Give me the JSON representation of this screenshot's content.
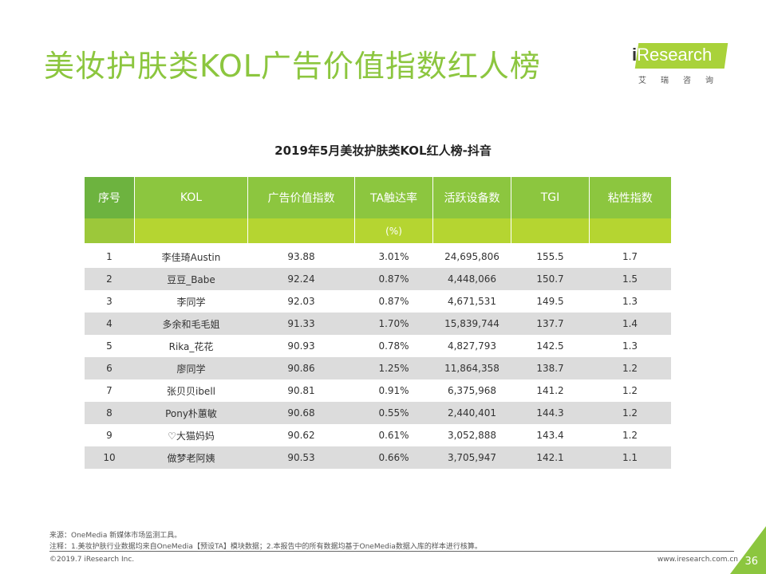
{
  "title": "美妆护肤类KOL广告价值指数红人榜",
  "logo": {
    "text_i": "i",
    "text": "Research",
    "cn": "艾瑞咨询"
  },
  "subtitle": "2019年5月美妆护肤类KOL红人榜-抖音",
  "columns": [
    "序号",
    "KOL",
    "广告价值指数",
    "TA触达率",
    "活跃设备数",
    "TGI",
    "粘性指数"
  ],
  "column_sub": [
    "",
    "",
    "",
    "(%)",
    "",
    "",
    ""
  ],
  "rows": [
    [
      "1",
      "李佳琦Austin",
      "93.88",
      "3.01%",
      "24,695,806",
      "155.5",
      "1.7"
    ],
    [
      "2",
      "豆豆_Babe",
      "92.24",
      "0.87%",
      "4,448,066",
      "150.7",
      "1.5"
    ],
    [
      "3",
      "李同学",
      "92.03",
      "0.87%",
      "4,671,531",
      "149.5",
      "1.3"
    ],
    [
      "4",
      "多余和毛毛姐",
      "91.33",
      "1.70%",
      "15,839,744",
      "137.7",
      "1.4"
    ],
    [
      "5",
      "Rika_花花",
      "90.93",
      "0.78%",
      "4,827,793",
      "142.5",
      "1.3"
    ],
    [
      "6",
      "廖同学",
      "90.86",
      "1.25%",
      "11,864,358",
      "138.7",
      "1.2"
    ],
    [
      "7",
      "张贝贝ibell",
      "90.81",
      "0.91%",
      "6,375,968",
      "141.2",
      "1.2"
    ],
    [
      "8",
      "Pony朴蕙敏",
      "90.68",
      "0.55%",
      "2,440,401",
      "144.3",
      "1.2"
    ],
    [
      "9",
      "♡大猫妈妈",
      "90.62",
      "0.61%",
      "3,052,888",
      "143.4",
      "1.2"
    ],
    [
      "10",
      "做梦老阿姨",
      "90.53",
      "0.66%",
      "3,705,947",
      "142.1",
      "1.1"
    ]
  ],
  "footer": {
    "source": "来源：OneMedia 新媒体市场监测工具。",
    "note": "注释：1.美妆护肤行业数据均来自OneMedia【预设TA】模块数据；2.本报告中的所有数据均基于OneMedia数据入库的样本进行核算。",
    "copyright": "©2019.7 iResearch Inc.",
    "website": "www.iresearch.com.cn",
    "page": "36"
  }
}
